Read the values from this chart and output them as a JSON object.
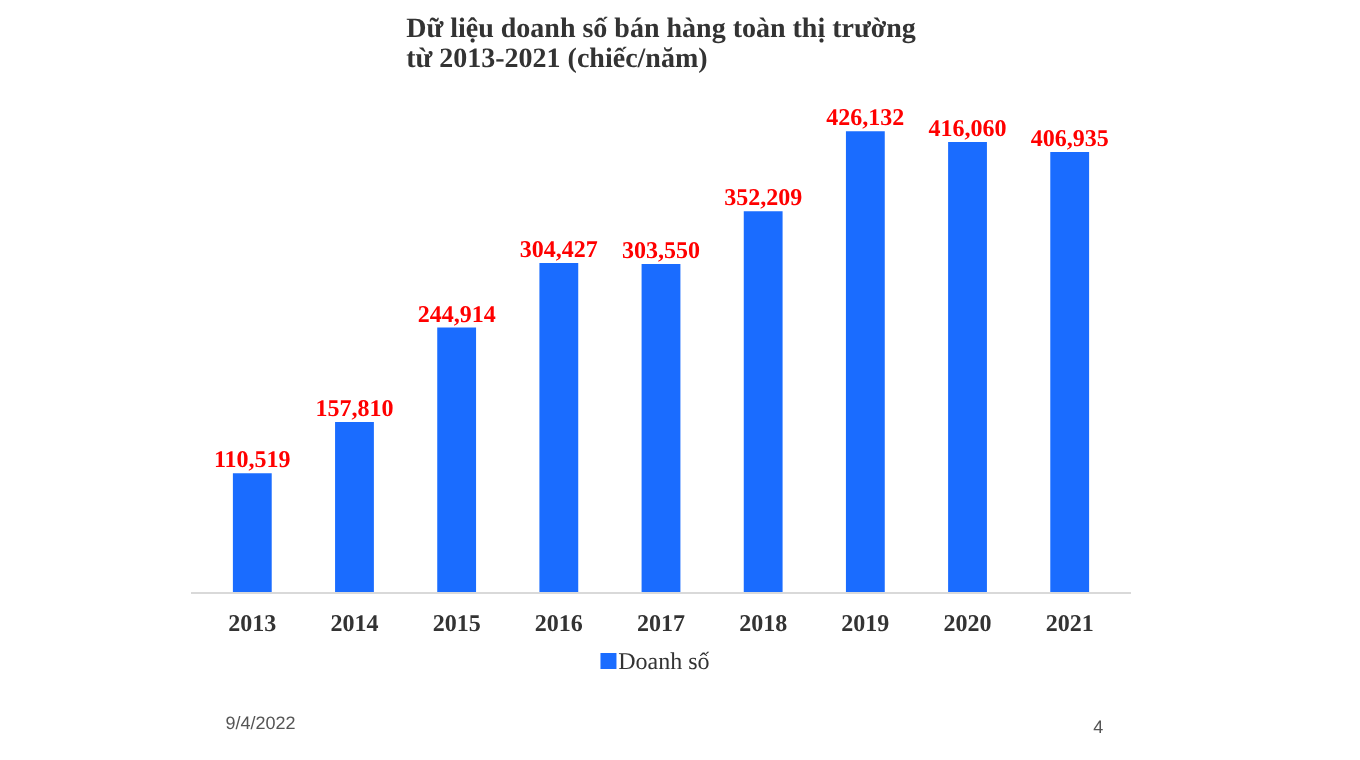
{
  "chart_data": {
    "type": "bar",
    "title": "Dữ liệu doanh số bán hàng toàn thị trường\ntừ 2013-2021 (chiếc/năm)",
    "categories": [
      "2013",
      "2014",
      "2015",
      "2016",
      "2017",
      "2018",
      "2019",
      "2020",
      "2021"
    ],
    "series": [
      {
        "name": "Doanh số",
        "color": "#1a6cff",
        "values": [
          110519,
          157810,
          244914,
          304427,
          303550,
          352209,
          426132,
          416060,
          406935
        ],
        "value_labels": [
          "110,519",
          "157,810",
          "244,914",
          "304,427",
          "303,550",
          "352,209",
          "426,132",
          "416,060",
          "406,935"
        ]
      }
    ],
    "legend": "bottom",
    "annotations": [
      "9/4/2022",
      "4"
    ]
  }
}
